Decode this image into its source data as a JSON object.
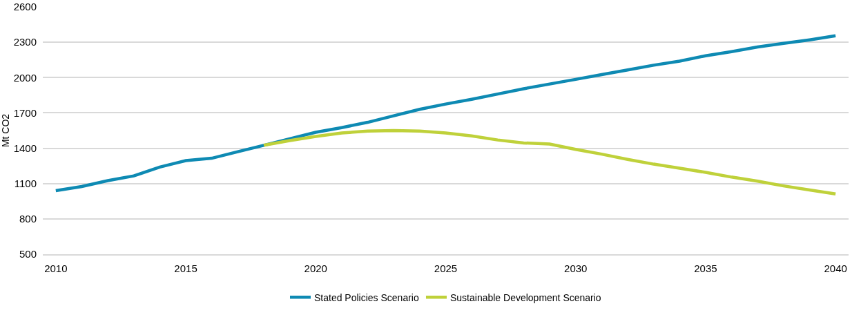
{
  "chart_data": {
    "type": "line",
    "ylabel": "Mt CO2",
    "x": [
      2010,
      2011,
      2012,
      2013,
      2014,
      2015,
      2016,
      2017,
      2018,
      2019,
      2020,
      2021,
      2022,
      2023,
      2024,
      2025,
      2026,
      2027,
      2028,
      2029,
      2030,
      2031,
      2032,
      2033,
      2034,
      2035,
      2036,
      2037,
      2038,
      2039,
      2040
    ],
    "series": [
      {
        "name": "Stated Policies Scenario",
        "color": "#0e8ab3",
        "values": [
          1040,
          1075,
          1125,
          1165,
          1240,
          1295,
          1315,
          1370,
          1425,
          1480,
          1535,
          1575,
          1620,
          1675,
          1730,
          1775,
          1815,
          1860,
          1905,
          1945,
          1985,
          2025,
          2065,
          2105,
          2140,
          2185,
          2220,
          2260,
          2290,
          2320,
          2355
        ]
      },
      {
        "name": "Sustainable Development Scenario",
        "color": "#bfd13a",
        "values": [
          null,
          null,
          null,
          null,
          null,
          null,
          null,
          null,
          1425,
          1465,
          1500,
          1530,
          1545,
          1550,
          1545,
          1530,
          1505,
          1470,
          1445,
          1435,
          1390,
          1350,
          1305,
          1265,
          1230,
          1195,
          1155,
          1120,
          1080,
          1045,
          1012
        ]
      }
    ],
    "xlim": [
      2009.5,
      2040.5
    ],
    "xticks": [
      2010,
      2015,
      2020,
      2025,
      2030,
      2035,
      2040
    ],
    "ylim": [
      500,
      2600
    ],
    "yticks": [
      500,
      800,
      1100,
      1400,
      1700,
      2000,
      2300,
      2600
    ],
    "grid": "y",
    "legend": "bottom",
    "line_style": "solid",
    "marker": "none"
  }
}
